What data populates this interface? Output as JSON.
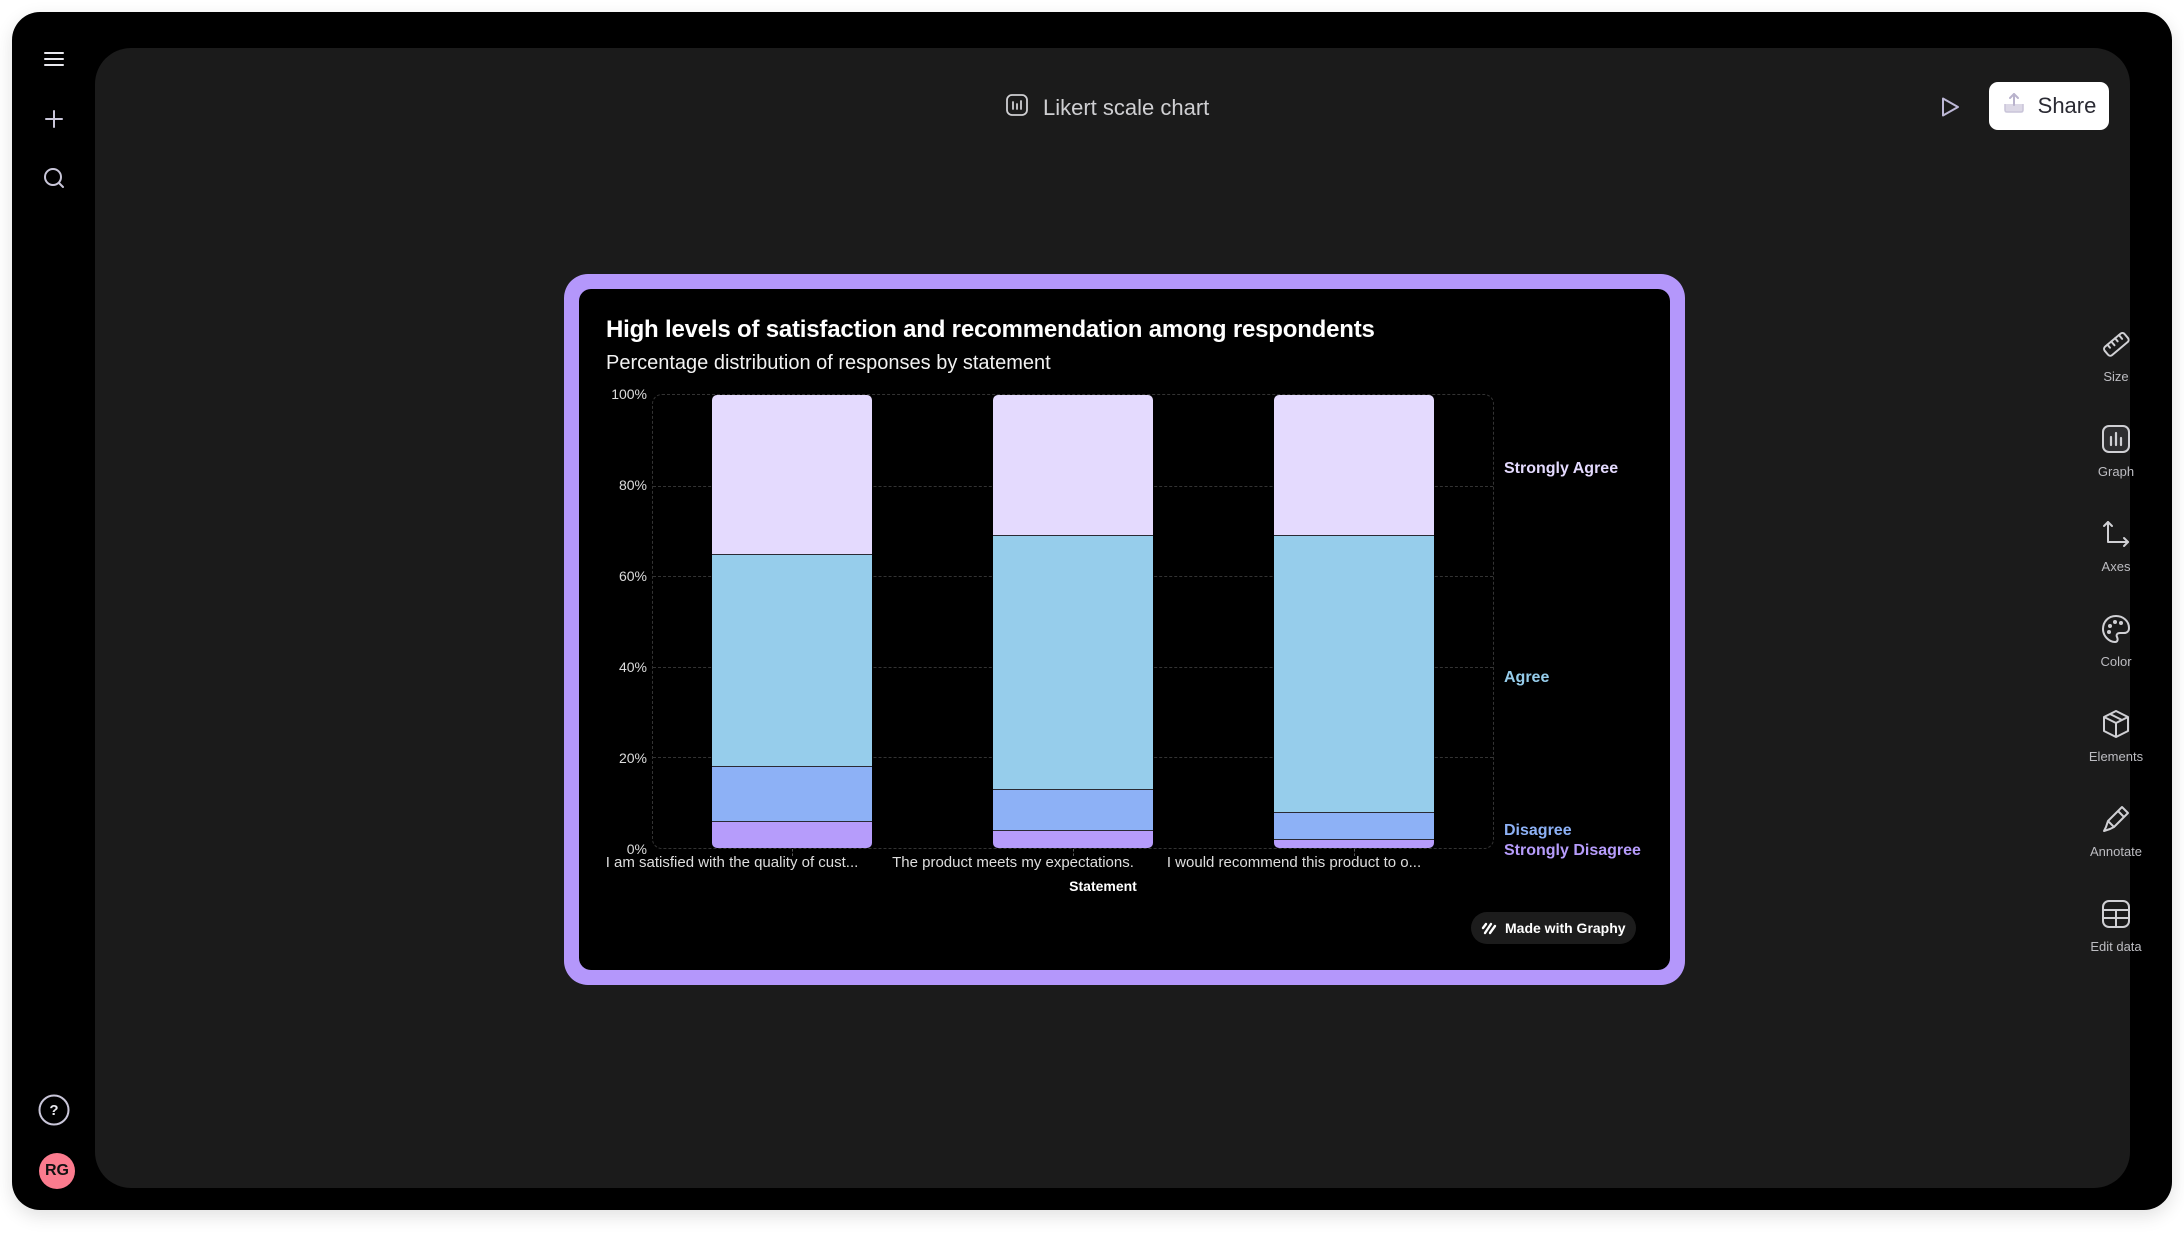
{
  "sidebar": {
    "items": [
      {
        "name": "menu",
        "icon": "hamburger-icon"
      },
      {
        "name": "new",
        "icon": "plus-icon"
      },
      {
        "name": "search",
        "icon": "search-icon"
      }
    ],
    "help_icon": "help-icon",
    "avatar_initials": "RG",
    "avatar_color": "#fb7b8e"
  },
  "header": {
    "title": "Likert scale chart",
    "title_icon": "chart-icon",
    "play_icon": "play-icon",
    "share_label": "Share",
    "share_icon": "upload-icon"
  },
  "toolbar": {
    "items": [
      {
        "label": "Size",
        "icon": "ruler-icon"
      },
      {
        "label": "Graph",
        "icon": "bar-chart-icon"
      },
      {
        "label": "Axes",
        "icon": "axes-icon"
      },
      {
        "label": "Color",
        "icon": "palette-icon"
      },
      {
        "label": "Elements",
        "icon": "cube-icon"
      },
      {
        "label": "Annotate",
        "icon": "pen-icon"
      },
      {
        "label": "Edit data",
        "icon": "table-icon"
      }
    ]
  },
  "card": {
    "border_color": "#b497fb",
    "badge_label": "Made with Graphy"
  },
  "chart_data": {
    "type": "bar",
    "stacked": true,
    "title": "High levels of satisfaction and recommendation among respondents",
    "subtitle": "Percentage distribution of responses by statement",
    "xlabel": "Statement",
    "ylabel": "",
    "ylim": [
      0,
      100
    ],
    "yticks": [
      "0%",
      "20%",
      "40%",
      "60%",
      "80%",
      "100%"
    ],
    "grid": true,
    "legend_position": "right (inline labels)",
    "categories": [
      "I am satisfied with the quality of cust...",
      "The product meets my expectations.",
      "I would recommend this product to o..."
    ],
    "series": [
      {
        "name": "Strongly Disagree",
        "color": "#b69cfb",
        "values": [
          6,
          4,
          2
        ]
      },
      {
        "name": "Disagree",
        "color": "#8db1f6",
        "values": [
          12,
          9,
          6
        ]
      },
      {
        "name": "Agree",
        "color": "#96cdeb",
        "values": [
          47,
          56,
          61
        ]
      },
      {
        "name": "Strongly Agree",
        "color": "#e4dafe",
        "values": [
          35,
          31,
          31
        ]
      }
    ],
    "legend_labels": [
      {
        "name": "Strongly Agree",
        "color": "#e4dafe"
      },
      {
        "name": "Agree",
        "color": "#96cdeb"
      },
      {
        "name": "Disagree",
        "color": "#8db1f6"
      },
      {
        "name": "Strongly Disagree",
        "color": "#b69cfb"
      }
    ]
  }
}
